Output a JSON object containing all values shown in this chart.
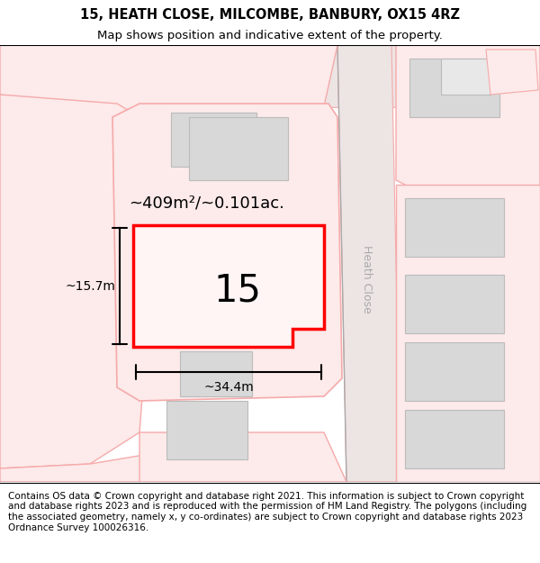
{
  "title": "15, HEATH CLOSE, MILCOMBE, BANBURY, OX15 4RZ",
  "subtitle": "Map shows position and indicative extent of the property.",
  "footer": "Contains OS data © Crown copyright and database right 2021. This information is subject to Crown copyright and database rights 2023 and is reproduced with the permission of HM Land Registry. The polygons (including the associated geometry, namely x, y co-ordinates) are subject to Crown copyright and database rights 2023 Ordnance Survey 100026316.",
  "title_fontsize": 10.5,
  "subtitle_fontsize": 9.5,
  "footer_fontsize": 7.5,
  "area_label": "~409m²/~0.101ac.",
  "number_label": "15",
  "dim_width": "~34.4m",
  "dim_height": "~15.7m",
  "street_label": "Heath Close",
  "pink": "#f5aaaa",
  "light_pink_fill": "#fdeaea",
  "road_fill": "#ede0e0",
  "building_fill": "#d8d8d8",
  "building_edge": "#bbbbbb",
  "map_bg": "#fdf5f5",
  "white": "#ffffff"
}
